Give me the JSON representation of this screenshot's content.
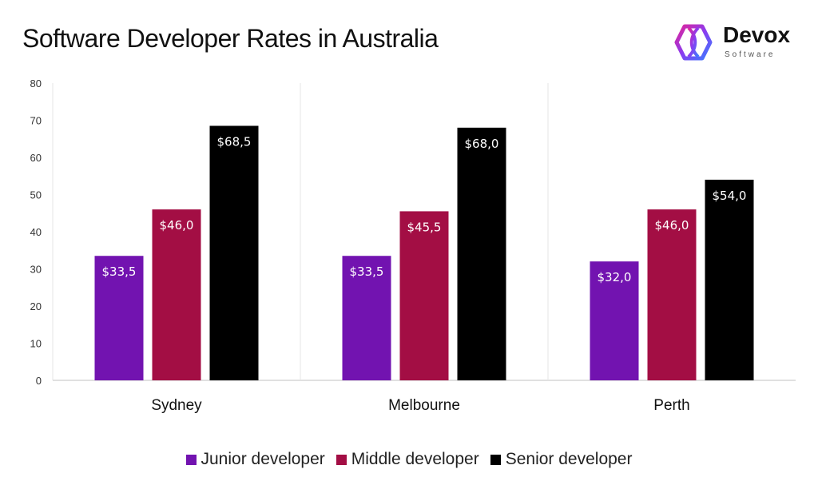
{
  "logo": {
    "name": "Devox",
    "sub": "Software"
  },
  "chart_data": {
    "type": "bar",
    "title": "Software Developer Rates in Australia",
    "categories": [
      "Sydney",
      "Melbourne",
      "Perth"
    ],
    "series": [
      {
        "name": "Junior developer",
        "color": "#7213b0",
        "values": [
          33.5,
          33.5,
          32.0
        ],
        "labels": [
          "$33,5",
          "$33,5",
          "$32,0"
        ]
      },
      {
        "name": "Middle developer",
        "color": "#a30e44",
        "values": [
          46.0,
          45.5,
          46.0
        ],
        "labels": [
          "$46,0",
          "$45,5",
          "$46,0"
        ]
      },
      {
        "name": "Senior developer",
        "color": "#000000",
        "values": [
          68.5,
          68.0,
          54.0
        ],
        "labels": [
          "$68,5",
          "$68,0",
          "$54,0"
        ]
      }
    ],
    "ylim": [
      0,
      80
    ],
    "yticks": [
      "0",
      "10",
      "20",
      "30",
      "40",
      "50",
      "60",
      "70",
      "80"
    ],
    "grid": false,
    "legend": "bottom"
  }
}
